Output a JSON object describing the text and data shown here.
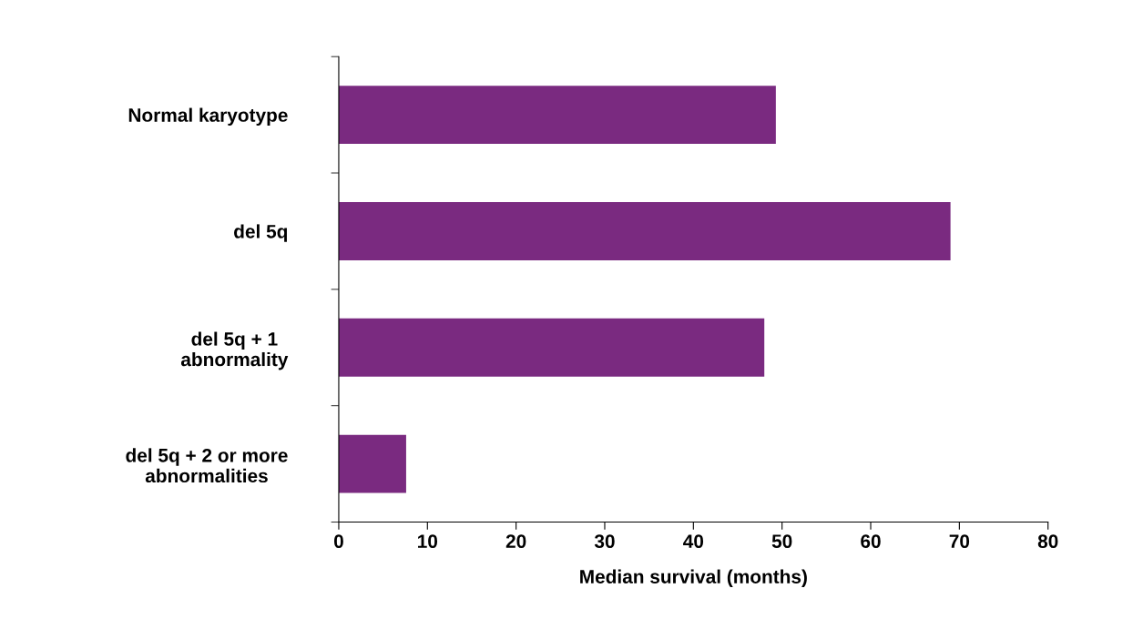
{
  "chart_data": {
    "type": "bar",
    "orientation": "horizontal",
    "xlabel": "Median survival (months)",
    "categories": [
      "Normal karyotype",
      "del 5q",
      "del 5q + 1\nabnormality",
      "del 5q + 2 or more\nabnormalities"
    ],
    "values": [
      49.3,
      69,
      48,
      7.6
    ],
    "color": "#7a2a80",
    "xlim": [
      0,
      80
    ],
    "xticks": [
      0,
      10,
      20,
      30,
      40,
      50,
      60,
      70,
      80
    ],
    "grid": false,
    "legend": false
  }
}
